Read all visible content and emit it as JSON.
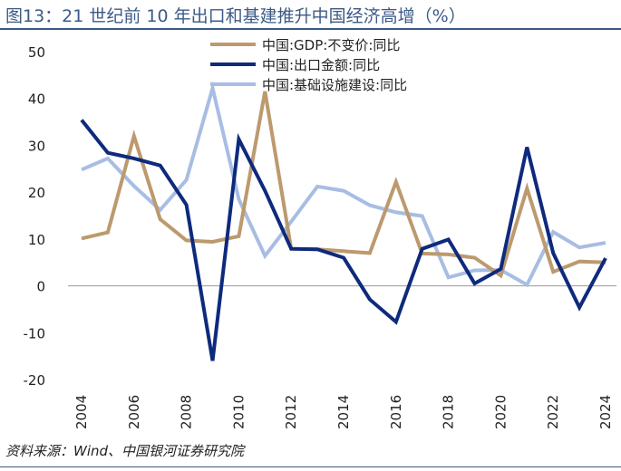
{
  "page": {
    "title": "图13：21 世纪前 10 年出口和基建推升中国经济高增（%）",
    "source": "资料来源：Wind、中国银河证券研究院"
  },
  "chart_data": {
    "type": "line",
    "title": "图13：21 世纪前 10 年出口和基建推升中国经济高增（%）",
    "xlabel": "",
    "ylabel": "",
    "ylim": [
      -20,
      50
    ],
    "yticks": [
      50,
      40,
      30,
      20,
      10,
      0,
      -10,
      -20
    ],
    "ytick_labels": [
      "50",
      "40",
      "30",
      "20",
      "10",
      "0",
      "-10",
      "-20"
    ],
    "x": [
      2004,
      2005,
      2006,
      2007,
      2008,
      2009,
      2010,
      2011,
      2012,
      2013,
      2014,
      2015,
      2016,
      2017,
      2018,
      2019,
      2020,
      2021,
      2022,
      2023,
      2024
    ],
    "xtick_labels": [
      "2004",
      "2006",
      "2008",
      "2010",
      "2012",
      "2014",
      "2016",
      "2018",
      "2020",
      "2022",
      "2024"
    ],
    "legend_position": "top-center",
    "series": [
      {
        "name": "中国:GDP:不变价:同比",
        "color": "#bc9a6e",
        "values": [
          10.1,
          11.4,
          32.0,
          14.2,
          9.7,
          9.4,
          10.6,
          41.5,
          7.9,
          7.8,
          7.4,
          7.0,
          22.2,
          6.9,
          6.7,
          6.0,
          2.2,
          20.8,
          3.0,
          5.2,
          5.0
        ]
      },
      {
        "name": "中国:出口金额:同比",
        "color": "#0e2a7d",
        "values": [
          35.4,
          28.4,
          27.2,
          25.7,
          17.3,
          -16.0,
          31.3,
          20.3,
          7.9,
          7.8,
          6.0,
          -2.9,
          -7.7,
          7.9,
          9.9,
          0.5,
          3.6,
          29.6,
          7.0,
          -4.6,
          5.9
        ]
      },
      {
        "name": "中国:基础设施建设:同比",
        "color": "#a8bde3",
        "values": [
          24.8,
          27.2,
          21.3,
          16.2,
          22.6,
          42.2,
          18.5,
          6.4,
          13.7,
          21.2,
          20.3,
          17.2,
          15.7,
          14.9,
          1.8,
          3.3,
          3.4,
          0.2,
          11.5,
          8.2,
          9.2
        ]
      }
    ]
  }
}
